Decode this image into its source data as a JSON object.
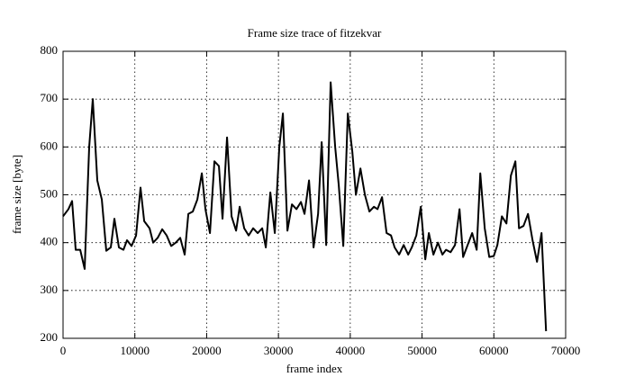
{
  "chart_data": {
    "type": "line",
    "title": "Frame size trace of fitzekvar",
    "x_label": "frame index",
    "y_label": "frame size [byte]",
    "x": [
      0,
      750,
      1260,
      1760,
      2390,
      3010,
      3640,
      4140,
      4770,
      5400,
      6020,
      6650,
      7150,
      7780,
      8410,
      8910,
      9540,
      10170,
      10790,
      11300,
      12050,
      12550,
      13180,
      13810,
      14430,
      15060,
      15690,
      16320,
      16940,
      17450,
      18070,
      18700,
      19330,
      19830,
      20460,
      21080,
      21710,
      22210,
      22840,
      23470,
      24100,
      24600,
      25230,
      25850,
      26480,
      27110,
      27740,
      28240,
      28870,
      29490,
      30120,
      30620,
      31250,
      31880,
      32510,
      33130,
      33630,
      34260,
      34890,
      35520,
      36020,
      36650,
      37270,
      37900,
      38400,
      39030,
      39660,
      40290,
      40790,
      41420,
      42040,
      42670,
      43300,
      43800,
      44430,
      45060,
      45680,
      46180,
      46810,
      47440,
      48070,
      48570,
      49200,
      49820,
      50450,
      50950,
      51580,
      52210,
      52840,
      53340,
      53970,
      54590,
      55220,
      55720,
      56350,
      56980,
      57610,
      58110,
      58730,
      59360,
      59990,
      60490,
      61120,
      61750,
      62370,
      63000,
      63500,
      64130,
      64760,
      65390,
      66010,
      66640,
      67270
    ],
    "series": [
      {
        "name": "frame size",
        "color": "#000000",
        "values": [
          455,
          470,
          487,
          385,
          385,
          345,
          600,
          700,
          530,
          490,
          383,
          390,
          450,
          390,
          385,
          405,
          393,
          415,
          515,
          445,
          430,
          400,
          410,
          428,
          415,
          393,
          400,
          410,
          375,
          460,
          465,
          490,
          545,
          470,
          420,
          570,
          560,
          450,
          620,
          455,
          425,
          475,
          430,
          415,
          430,
          420,
          430,
          390,
          505,
          420,
          600,
          670,
          425,
          480,
          470,
          485,
          460,
          530,
          390,
          460,
          610,
          395,
          735,
          600,
          520,
          393,
          670,
          590,
          500,
          555,
          500,
          465,
          475,
          470,
          495,
          420,
          415,
          390,
          375,
          395,
          375,
          390,
          415,
          475,
          365,
          420,
          375,
          400,
          375,
          385,
          380,
          395,
          470,
          370,
          395,
          420,
          385,
          545,
          430,
          370,
          372,
          395,
          455,
          440,
          540,
          570,
          430,
          435,
          460,
          405,
          360,
          420,
          215
        ]
      }
    ],
    "xlim": [
      0,
      70000
    ],
    "ylim": [
      200,
      800
    ],
    "xticks": [
      0,
      10000,
      20000,
      30000,
      40000,
      50000,
      60000,
      70000
    ],
    "yticks": [
      200,
      300,
      400,
      500,
      600,
      700,
      800
    ],
    "grid": true
  }
}
